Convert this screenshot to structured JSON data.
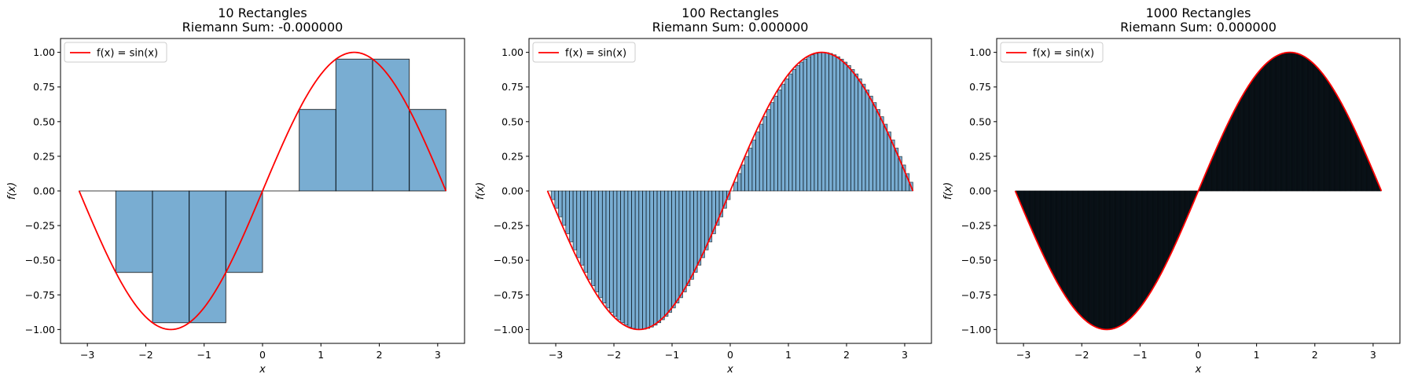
{
  "chart_data": [
    {
      "type": "bar",
      "title_line1": "10 Rectangles",
      "title_line2": "Riemann Sum: -0.000000",
      "xlabel": "x",
      "ylabel": "f(x)",
      "legend": "f(x) = sin(x)",
      "n": 10,
      "function": "sin(x)",
      "x_domain": [
        -3.14159,
        3.14159
      ],
      "xlim": [
        -3.46,
        3.46
      ],
      "ylim": [
        -1.1,
        1.1
      ],
      "xticks": [
        -3,
        -2,
        -1,
        0,
        1,
        2,
        3
      ],
      "yticks": [
        -1.0,
        -0.75,
        -0.5,
        -0.25,
        0.0,
        0.25,
        0.5,
        0.75,
        1.0
      ],
      "rect_left_x": [
        -3.142,
        -2.513,
        -1.885,
        -1.257,
        -0.628,
        0.0,
        0.628,
        1.257,
        1.885,
        2.513
      ],
      "rect_width": 0.628,
      "values": [
        0.0,
        -0.588,
        -0.951,
        -0.951,
        -0.588,
        0.0,
        0.588,
        0.951,
        0.951,
        0.588
      ],
      "bar_color": "#1f77b4",
      "curve_color": "#ff0000"
    },
    {
      "type": "bar",
      "title_line1": "100 Rectangles",
      "title_line2": "Riemann Sum: 0.000000",
      "xlabel": "x",
      "ylabel": "f(x)",
      "legend": "f(x) = sin(x)",
      "n": 100,
      "function": "sin(x)",
      "x_domain": [
        -3.14159,
        3.14159
      ],
      "xlim": [
        -3.46,
        3.46
      ],
      "ylim": [
        -1.1,
        1.1
      ],
      "xticks": [
        -3,
        -2,
        -1,
        0,
        1,
        2,
        3
      ],
      "yticks": [
        -1.0,
        -0.75,
        -0.5,
        -0.25,
        0.0,
        0.25,
        0.5,
        0.75,
        1.0
      ],
      "rect_rule": "left endpoints of 100 equal subintervals of [-π, π], height sin(left x)",
      "bar_color": "#1f77b4",
      "curve_color": "#ff0000"
    },
    {
      "type": "bar",
      "title_line1": "1000 Rectangles",
      "title_line2": "Riemann Sum: 0.000000",
      "xlabel": "x",
      "ylabel": "f(x)",
      "legend": "f(x) = sin(x)",
      "n": 1000,
      "function": "sin(x)",
      "x_domain": [
        -3.14159,
        3.14159
      ],
      "xlim": [
        -3.46,
        3.46
      ],
      "ylim": [
        -1.1,
        1.1
      ],
      "xticks": [
        -3,
        -2,
        -1,
        0,
        1,
        2,
        3
      ],
      "yticks": [
        -1.0,
        -0.75,
        -0.5,
        -0.25,
        0.0,
        0.25,
        0.5,
        0.75,
        1.0
      ],
      "rect_rule": "left endpoints of 1000 equal subintervals of [-π, π], height sin(left x)",
      "bar_color": "#1f77b4",
      "curve_color": "#ff0000"
    }
  ]
}
